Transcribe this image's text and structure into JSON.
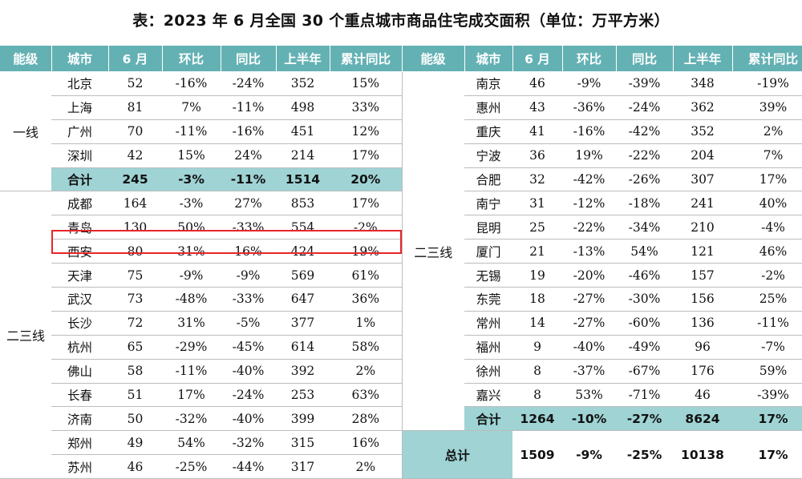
{
  "title": "表：2023 年 6 月全国 30 个重点城市商品住宅成交面积（单位：万平方米）",
  "headers": [
    "能级",
    "城市",
    "6 月",
    "环比",
    "同比",
    "上半年",
    "累计同比",
    "能级",
    "城市",
    "6 月",
    "环比",
    "同比",
    "上半年",
    "累计同比"
  ],
  "left": {
    "tier1_label": "一线",
    "tier1_rows": [
      {
        "city": "北京",
        "jun": "52",
        "mom": "-16%",
        "yoy": "-24%",
        "h1": "352",
        "cum": "15%"
      },
      {
        "city": "上海",
        "jun": "81",
        "mom": "7%",
        "yoy": "-11%",
        "h1": "498",
        "cum": "33%"
      },
      {
        "city": "广州",
        "jun": "70",
        "mom": "-11%",
        "yoy": "-16%",
        "h1": "451",
        "cum": "12%"
      },
      {
        "city": "深圳",
        "jun": "42",
        "mom": "15%",
        "yoy": "24%",
        "h1": "214",
        "cum": "17%"
      }
    ],
    "tier1_total": {
      "city": "合计",
      "jun": "245",
      "mom": "-3%",
      "yoy": "-11%",
      "h1": "1514",
      "cum": "20%"
    },
    "tier23_label": "二三线",
    "tier23_rows": [
      {
        "city": "成都",
        "jun": "164",
        "mom": "-3%",
        "yoy": "27%",
        "h1": "853",
        "cum": "17%"
      },
      {
        "city": "青岛",
        "jun": "130",
        "mom": "50%",
        "yoy": "-33%",
        "h1": "554",
        "cum": "-2%"
      },
      {
        "city": "西安",
        "jun": "80",
        "mom": "31%",
        "yoy": "16%",
        "h1": "424",
        "cum": "19%"
      },
      {
        "city": "天津",
        "jun": "75",
        "mom": "-9%",
        "yoy": "-9%",
        "h1": "569",
        "cum": "61%"
      },
      {
        "city": "武汉",
        "jun": "73",
        "mom": "-48%",
        "yoy": "-33%",
        "h1": "647",
        "cum": "36%"
      },
      {
        "city": "长沙",
        "jun": "72",
        "mom": "31%",
        "yoy": "-5%",
        "h1": "377",
        "cum": "1%"
      },
      {
        "city": "杭州",
        "jun": "65",
        "mom": "-29%",
        "yoy": "-45%",
        "h1": "614",
        "cum": "58%"
      },
      {
        "city": "佛山",
        "jun": "58",
        "mom": "-11%",
        "yoy": "-40%",
        "h1": "392",
        "cum": "2%"
      },
      {
        "city": "长春",
        "jun": "51",
        "mom": "17%",
        "yoy": "-24%",
        "h1": "253",
        "cum": "63%"
      },
      {
        "city": "济南",
        "jun": "50",
        "mom": "-32%",
        "yoy": "-40%",
        "h1": "399",
        "cum": "28%"
      },
      {
        "city": "郑州",
        "jun": "49",
        "mom": "54%",
        "yoy": "-32%",
        "h1": "315",
        "cum": "16%"
      },
      {
        "city": "苏州",
        "jun": "46",
        "mom": "-25%",
        "yoy": "-44%",
        "h1": "317",
        "cum": "2%"
      }
    ]
  },
  "right": {
    "tier_label": "二三线",
    "rows": [
      {
        "city": "南京",
        "jun": "46",
        "mom": "-9%",
        "yoy": "-39%",
        "h1": "348",
        "cum": "-19%"
      },
      {
        "city": "惠州",
        "jun": "43",
        "mom": "-36%",
        "yoy": "-24%",
        "h1": "362",
        "cum": "39%"
      },
      {
        "city": "重庆",
        "jun": "41",
        "mom": "-16%",
        "yoy": "-42%",
        "h1": "352",
        "cum": "2%"
      },
      {
        "city": "宁波",
        "jun": "36",
        "mom": "19%",
        "yoy": "-22%",
        "h1": "204",
        "cum": "7%"
      },
      {
        "city": "合肥",
        "jun": "32",
        "mom": "-42%",
        "yoy": "-26%",
        "h1": "307",
        "cum": "17%"
      },
      {
        "city": "南宁",
        "jun": "31",
        "mom": "-12%",
        "yoy": "-18%",
        "h1": "241",
        "cum": "40%"
      },
      {
        "city": "昆明",
        "jun": "25",
        "mom": "-22%",
        "yoy": "-34%",
        "h1": "210",
        "cum": "-4%"
      },
      {
        "city": "厦门",
        "jun": "21",
        "mom": "-13%",
        "yoy": "54%",
        "h1": "121",
        "cum": "46%"
      },
      {
        "city": "无锡",
        "jun": "19",
        "mom": "-20%",
        "yoy": "-46%",
        "h1": "157",
        "cum": "-2%"
      },
      {
        "city": "东莞",
        "jun": "18",
        "mom": "-27%",
        "yoy": "-30%",
        "h1": "156",
        "cum": "25%"
      },
      {
        "city": "常州",
        "jun": "14",
        "mom": "-27%",
        "yoy": "-60%",
        "h1": "136",
        "cum": "-11%"
      },
      {
        "city": "福州",
        "jun": "9",
        "mom": "-40%",
        "yoy": "-49%",
        "h1": "96",
        "cum": "-7%"
      },
      {
        "city": "徐州",
        "jun": "8",
        "mom": "-37%",
        "yoy": "-67%",
        "h1": "176",
        "cum": "59%"
      },
      {
        "city": "嘉兴",
        "jun": "8",
        "mom": "53%",
        "yoy": "-71%",
        "h1": "46",
        "cum": "-39%"
      }
    ],
    "subtotal": {
      "city": "合计",
      "jun": "1264",
      "mom": "-10%",
      "yoy": "-27%",
      "h1": "8624",
      "cum": "17%"
    },
    "grand_total": {
      "label": "总计",
      "jun": "1509",
      "mom": "-9%",
      "yoy": "-25%",
      "h1": "10138",
      "cum": "17%"
    }
  },
  "colors": {
    "header_bg": "#64b1b4",
    "total_bg": "#9fd3d4",
    "highlight_border": "#e6262a"
  }
}
